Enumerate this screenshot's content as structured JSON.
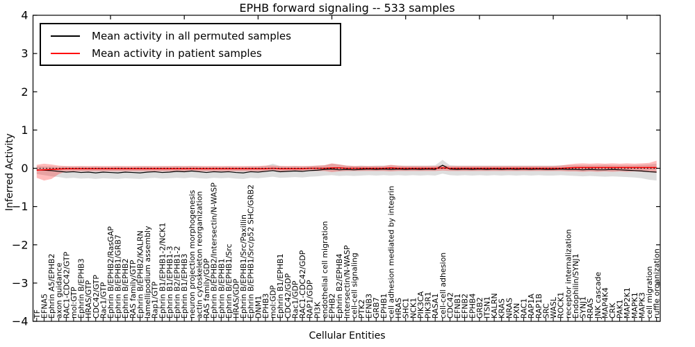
{
  "chart_data": {
    "type": "line",
    "title": "EPHB forward signaling -- 533 samples",
    "xlabel": "Cellular Entities",
    "ylabel": "Inferred Activity",
    "ylim": [
      -4,
      4
    ],
    "yticks": [
      4,
      3,
      2,
      1,
      0,
      -1,
      -2,
      -3,
      -4
    ],
    "top_ticks_every": 10,
    "grid": false,
    "legend_position": "upper left",
    "zero_line": {
      "value": 0,
      "style": "dotted",
      "color": "#000000"
    },
    "categories": [
      "TF",
      "EFNA5",
      "Ephrin A5/EPHB2",
      "axon guidance",
      "RAC1-CDC42/GTP",
      "mol:GTP",
      "Ephrin B/EPHB3",
      "HRAS/GTP",
      "CDC42/GTP",
      "Rac1/GTP",
      "Ephrin B/EPHB2/RasGAP",
      "Ephrin B/EPHB1/GRB7",
      "Ephrin B/EPHB2",
      "RAS family/GTP",
      "Ephrin B/EPHB2/KALRN",
      "lamellipodium assembly",
      "Rap1/GTP",
      "Ephrin B1/EPHB1-2/NCK1",
      "Ephrin B1/EPHB1-3",
      "Ephrin B2/EPHB1-2",
      "Ephrin B1/EPHB3",
      "neuron projection morphogenesis",
      "actin cytoskeleton reorganization",
      "RAS family/GDP",
      "Ephrin B/EPHB2/Intersectin/N-WASP",
      "Ephrin B/EPHB1",
      "Ephrin B/EPHB1/Src",
      "HRAS/GDP",
      "Ephrin B/EPHB1/Src/Paxillin",
      "Ephrin B/EPHB1/Src/p52 SHC/GRB2",
      "DNM1",
      "EPHB3",
      "mol:GDP",
      "Ephrin B1/EPHB1",
      "CDC42/GDP",
      "Rac1/GDP",
      "RAC1-CDC42/GDP",
      "RAP1/GDP",
      "PI3K",
      "endothelial cell migration",
      "EPHB2",
      "Ephrin B2/EPHB4",
      "Intersectin/N-WASP",
      "cell-cell signaling",
      "PTK2",
      "EFNB3",
      "GRB7",
      "EPHB1",
      "cell adhesion mediated by integrin",
      "HRAS",
      "SHC1",
      "NCK1",
      "PIK3CA",
      "PIK3R1",
      "RASA1",
      "cell-cell adhesion",
      "CDC42",
      "EFNB1",
      "EFNB2",
      "EPHB4",
      "GRB2",
      "ITSN1",
      "KALRN",
      "KRAS",
      "NRAS",
      "PXN",
      "RAC1",
      "RAP1A",
      "RAP1B",
      "SRC",
      "WASL",
      "ROCK1",
      "receptor internalization",
      "Endophilin/SYNJ1",
      "SYNJ1",
      "RRAS",
      "JNK cascade",
      "MAP4K4",
      "CRK",
      "PAK1",
      "MAP2K1",
      "MAPK1",
      "MAPK3",
      "cell migration",
      "ruffle organization"
    ],
    "series": [
      {
        "name": "Mean activity in all permuted samples",
        "color": "#000000",
        "band_color": "#000000",
        "band_opacity": 0.13,
        "mean": [
          -0.04,
          -0.05,
          -0.06,
          -0.08,
          -0.1,
          -0.09,
          -0.11,
          -0.1,
          -0.12,
          -0.1,
          -0.11,
          -0.12,
          -0.1,
          -0.11,
          -0.12,
          -0.1,
          -0.09,
          -0.11,
          -0.1,
          -0.08,
          -0.09,
          -0.07,
          -0.09,
          -0.11,
          -0.09,
          -0.1,
          -0.09,
          -0.11,
          -0.12,
          -0.09,
          -0.1,
          -0.08,
          -0.06,
          -0.09,
          -0.08,
          -0.07,
          -0.08,
          -0.06,
          -0.05,
          -0.03,
          -0.02,
          -0.04,
          -0.03,
          -0.04,
          -0.03,
          -0.02,
          -0.03,
          -0.02,
          -0.03,
          -0.02,
          -0.03,
          -0.02,
          -0.03,
          -0.02,
          -0.03,
          0.08,
          -0.02,
          -0.03,
          -0.02,
          -0.03,
          -0.02,
          -0.03,
          -0.02,
          -0.03,
          -0.02,
          -0.03,
          -0.02,
          -0.03,
          -0.02,
          -0.03,
          -0.03,
          -0.02,
          -0.03,
          -0.03,
          -0.04,
          -0.03,
          -0.04,
          -0.04,
          -0.03,
          -0.04,
          -0.05,
          -0.06,
          -0.07,
          -0.09,
          -0.1
        ],
        "upper": [
          0.06,
          0.05,
          0.05,
          0.04,
          0.05,
          0.04,
          0.05,
          0.04,
          0.05,
          0.04,
          0.04,
          0.05,
          0.04,
          0.04,
          0.05,
          0.05,
          0.04,
          0.05,
          0.05,
          0.06,
          0.05,
          0.06,
          0.05,
          0.04,
          0.05,
          0.04,
          0.05,
          0.04,
          0.04,
          0.05,
          0.05,
          0.06,
          0.12,
          0.06,
          0.05,
          0.06,
          0.05,
          0.06,
          0.07,
          0.08,
          0.12,
          0.1,
          0.07,
          0.06,
          0.07,
          0.06,
          0.07,
          0.07,
          0.08,
          0.07,
          0.07,
          0.07,
          0.07,
          0.07,
          0.08,
          0.22,
          0.08,
          0.07,
          0.07,
          0.07,
          0.07,
          0.07,
          0.07,
          0.07,
          0.07,
          0.07,
          0.07,
          0.07,
          0.07,
          0.07,
          0.07,
          0.08,
          0.08,
          0.08,
          0.08,
          0.08,
          0.08,
          0.09,
          0.08,
          0.08,
          0.08,
          0.08,
          0.09,
          0.1,
          0.12
        ],
        "lower": [
          -0.15,
          -0.18,
          -0.21,
          -0.23,
          -0.26,
          -0.25,
          -0.27,
          -0.26,
          -0.28,
          -0.26,
          -0.27,
          -0.28,
          -0.26,
          -0.27,
          -0.28,
          -0.26,
          -0.25,
          -0.27,
          -0.26,
          -0.25,
          -0.26,
          -0.24,
          -0.26,
          -0.27,
          -0.25,
          -0.26,
          -0.25,
          -0.27,
          -0.28,
          -0.25,
          -0.26,
          -0.24,
          -0.22,
          -0.25,
          -0.24,
          -0.23,
          -0.24,
          -0.22,
          -0.21,
          -0.19,
          -0.18,
          -0.2,
          -0.19,
          -0.2,
          -0.19,
          -0.18,
          -0.19,
          -0.18,
          -0.19,
          -0.18,
          -0.19,
          -0.18,
          -0.19,
          -0.18,
          -0.19,
          -0.14,
          -0.18,
          -0.19,
          -0.18,
          -0.19,
          -0.18,
          -0.19,
          -0.18,
          -0.19,
          -0.18,
          -0.19,
          -0.18,
          -0.19,
          -0.18,
          -0.19,
          -0.19,
          -0.18,
          -0.19,
          -0.2,
          -0.21,
          -0.2,
          -0.21,
          -0.22,
          -0.21,
          -0.22,
          -0.23,
          -0.24,
          -0.26,
          -0.3,
          -0.32
        ]
      },
      {
        "name": "Mean activity in patient samples",
        "color": "#ff0000",
        "band_color": "#ff0000",
        "band_opacity": 0.27,
        "mean": [
          -0.05,
          -0.04,
          -0.03,
          -0.02,
          -0.01,
          -0.01,
          -0.01,
          -0.01,
          -0.01,
          -0.01,
          -0.01,
          -0.01,
          -0.01,
          -0.01,
          -0.01,
          -0.01,
          -0.01,
          -0.01,
          -0.01,
          -0.01,
          -0.01,
          -0.01,
          -0.01,
          -0.01,
          -0.01,
          -0.01,
          -0.01,
          -0.01,
          -0.01,
          -0.01,
          -0.01,
          -0.01,
          0.0,
          -0.01,
          -0.01,
          -0.01,
          -0.01,
          0.0,
          0.0,
          0.0,
          0.01,
          0.01,
          0.0,
          0.0,
          0.0,
          0.0,
          0.0,
          0.0,
          0.01,
          0.0,
          0.0,
          0.0,
          0.0,
          0.0,
          0.0,
          0.01,
          0.0,
          0.0,
          0.0,
          0.0,
          0.0,
          0.0,
          0.0,
          0.0,
          0.0,
          0.0,
          0.0,
          0.0,
          0.0,
          0.0,
          0.0,
          0.0,
          0.01,
          0.02,
          0.02,
          0.02,
          0.02,
          0.02,
          0.02,
          0.02,
          0.02,
          0.02,
          0.02,
          0.02,
          0.02
        ],
        "upper": [
          0.09,
          0.12,
          0.1,
          0.07,
          0.06,
          0.06,
          0.06,
          0.06,
          0.06,
          0.06,
          0.06,
          0.06,
          0.06,
          0.06,
          0.06,
          0.06,
          0.06,
          0.06,
          0.06,
          0.06,
          0.06,
          0.06,
          0.06,
          0.06,
          0.06,
          0.06,
          0.06,
          0.06,
          0.06,
          0.06,
          0.06,
          0.07,
          0.07,
          0.06,
          0.06,
          0.06,
          0.06,
          0.06,
          0.07,
          0.08,
          0.13,
          0.1,
          0.07,
          0.06,
          0.06,
          0.06,
          0.06,
          0.06,
          0.09,
          0.07,
          0.06,
          0.06,
          0.06,
          0.06,
          0.06,
          0.08,
          0.06,
          0.06,
          0.06,
          0.06,
          0.06,
          0.06,
          0.06,
          0.06,
          0.06,
          0.06,
          0.06,
          0.06,
          0.06,
          0.06,
          0.06,
          0.07,
          0.1,
          0.12,
          0.13,
          0.12,
          0.13,
          0.12,
          0.13,
          0.12,
          0.13,
          0.12,
          0.13,
          0.14,
          0.2
        ],
        "lower": [
          -0.25,
          -0.32,
          -0.28,
          -0.15,
          -0.08,
          -0.08,
          -0.08,
          -0.08,
          -0.08,
          -0.08,
          -0.08,
          -0.08,
          -0.08,
          -0.08,
          -0.08,
          -0.08,
          -0.08,
          -0.08,
          -0.08,
          -0.08,
          -0.08,
          -0.08,
          -0.08,
          -0.08,
          -0.08,
          -0.08,
          -0.08,
          -0.08,
          -0.08,
          -0.08,
          -0.08,
          -0.08,
          -0.07,
          -0.08,
          -0.08,
          -0.08,
          -0.08,
          -0.07,
          -0.07,
          -0.07,
          -0.1,
          -0.08,
          -0.07,
          -0.07,
          -0.07,
          -0.07,
          -0.07,
          -0.07,
          -0.08,
          -0.07,
          -0.07,
          -0.07,
          -0.07,
          -0.07,
          -0.07,
          -0.06,
          -0.07,
          -0.07,
          -0.07,
          -0.07,
          -0.07,
          -0.07,
          -0.07,
          -0.07,
          -0.07,
          -0.07,
          -0.07,
          -0.07,
          -0.07,
          -0.07,
          -0.07,
          -0.07,
          -0.08,
          -0.08,
          -0.09,
          -0.08,
          -0.09,
          -0.08,
          -0.09,
          -0.08,
          -0.09,
          -0.08,
          -0.09,
          -0.1,
          -0.12
        ]
      }
    ]
  }
}
